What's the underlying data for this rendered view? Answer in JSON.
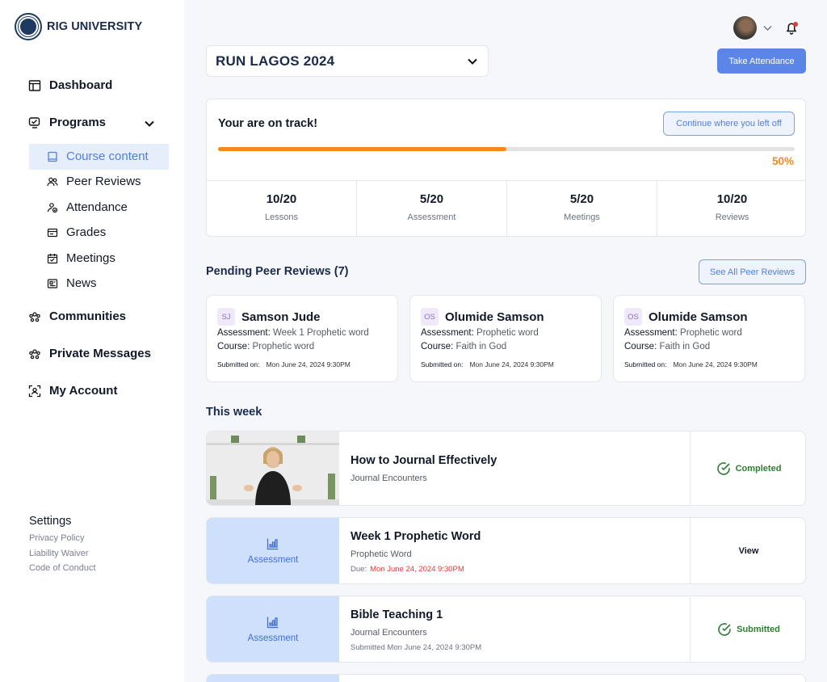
{
  "brand": {
    "name": "RIG UNIVERSITY"
  },
  "sidebar": {
    "nav": {
      "dashboard": "Dashboard",
      "programs": "Programs",
      "communities": "Communities",
      "private_messages": "Private Messages",
      "my_account": "My Account"
    },
    "sub": {
      "course_content": "Course content",
      "peer_reviews": "Peer Reviews",
      "attendance": "Attendance",
      "grades": "Grades",
      "meetings": "Meetings",
      "news": "News"
    },
    "settings": {
      "title": "Settings",
      "privacy": "Privacy Policy",
      "liability": "Liability Waiver",
      "conduct": "Code of Conduct"
    }
  },
  "header": {
    "program": "RUN LAGOS 2024",
    "take_attendance": "Take Attendance"
  },
  "track": {
    "title": "Your are on track!",
    "continue": "Continue where you left off",
    "progress": 0.5,
    "progress_label": "50%",
    "stats": [
      {
        "value": "10/20",
        "label": "Lessons"
      },
      {
        "value": "5/20",
        "label": "Assessment"
      },
      {
        "value": "5/20",
        "label": "Meetings"
      },
      {
        "value": "10/20",
        "label": "Reviews"
      }
    ]
  },
  "pending": {
    "title": "Pending Peer Reviews (7)",
    "see_all": "See All  Peer Reviews",
    "assessment_label": "Assessment:",
    "course_label": "Course:",
    "submitted_label": "Submitted on:",
    "cards": [
      {
        "initials": "SJ",
        "name": "Samson Jude",
        "assessment": "Week 1 Prophetic word",
        "course": "Prophetic word",
        "submitted": "Mon June 24, 2024 9:30PM"
      },
      {
        "initials": "OS",
        "name": "Olumide Samson",
        "assessment": "Prophetic word",
        "course": "Faith in God",
        "submitted": "Mon June 24, 2024 9:30PM"
      },
      {
        "initials": "OS",
        "name": "Olumide Samson",
        "assessment": "Prophetic word",
        "course": "Faith in God",
        "submitted": "Mon June 24, 2024 9:30PM"
      }
    ]
  },
  "week": {
    "title": "This week",
    "items": [
      {
        "title": "How to Journal Effectively",
        "subtitle": "Journal Encounters",
        "status": "Completed"
      },
      {
        "left_label": "Assessment",
        "title": "Week 1  Prophetic Word",
        "subtitle": "Prophetic Word",
        "due_label": "Due:",
        "due": "Mon June 24, 2024  9:30PM",
        "action": "View"
      },
      {
        "left_label": "Assessment",
        "title": "Bible Teaching 1",
        "subtitle": "Journal Encounters",
        "submitted": "Submitted  Mon June 24, 2024 9:30PM",
        "status": "Submitted"
      }
    ]
  },
  "colors": {
    "accent": "#5b86e8",
    "progress": "#f28c18",
    "success": "#2e7d32",
    "danger": "#e53935"
  }
}
